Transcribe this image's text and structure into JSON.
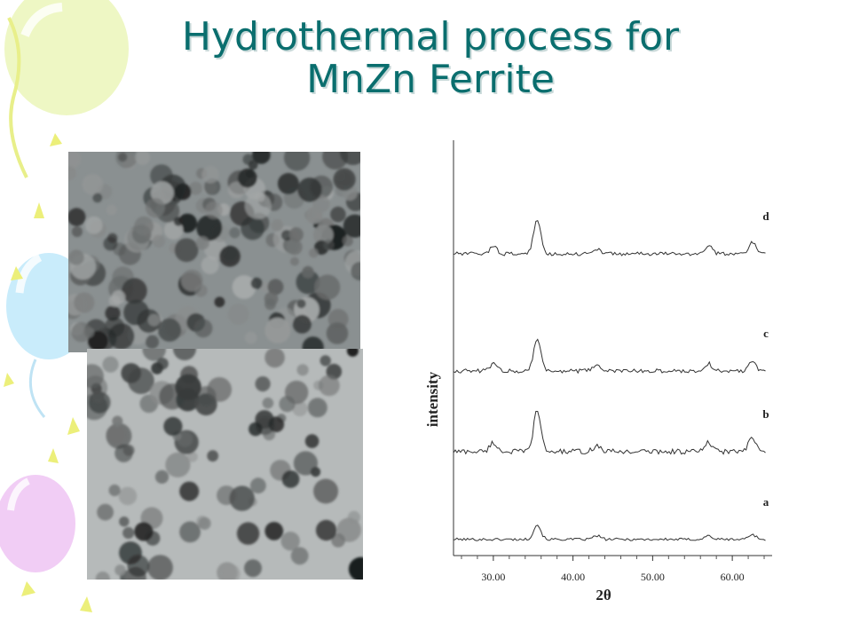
{
  "slide": {
    "title_line1": "Hydrothermal process for",
    "title_line2": "MnZn Ferrite",
    "accent_color": "#0a6e6e"
  },
  "images": [
    {
      "name": "tem-micrograph-top",
      "icon": "micrograph"
    },
    {
      "name": "tem-micrograph-bottom",
      "icon": "micrograph"
    }
  ],
  "chart_data": {
    "type": "line",
    "title": "",
    "xlabel": "2θ",
    "ylabel": "intensity",
    "xlim": [
      25,
      65
    ],
    "xticks": [
      30,
      40,
      50,
      60
    ],
    "xtick_labels": [
      "30.00",
      "40.00",
      "50.00",
      "60.00"
    ],
    "grid": false,
    "series": [
      {
        "name": "a",
        "offset": 0.5,
        "peaks": [
          [
            35.5,
            1.0
          ],
          [
            43.0,
            0.25
          ],
          [
            57.0,
            0.25
          ],
          [
            62.5,
            0.35
          ]
        ],
        "noise": 0.18
      },
      {
        "name": "b",
        "offset": 6.5,
        "peaks": [
          [
            30.0,
            0.6
          ],
          [
            35.5,
            2.8
          ],
          [
            43.0,
            0.4
          ],
          [
            57.0,
            0.6
          ],
          [
            62.5,
            0.9
          ]
        ],
        "noise": 0.35
      },
      {
        "name": "c",
        "offset": 12.0,
        "peaks": [
          [
            30.0,
            0.5
          ],
          [
            35.5,
            2.2
          ],
          [
            43.0,
            0.45
          ],
          [
            57.0,
            0.5
          ],
          [
            62.5,
            0.7
          ]
        ],
        "noise": 0.28
      },
      {
        "name": "d",
        "offset": 20.0,
        "peaks": [
          [
            30.0,
            0.5
          ],
          [
            35.5,
            2.3
          ],
          [
            43.0,
            0.35
          ],
          [
            57.0,
            0.55
          ],
          [
            62.5,
            0.8
          ]
        ],
        "noise": 0.25
      }
    ]
  }
}
